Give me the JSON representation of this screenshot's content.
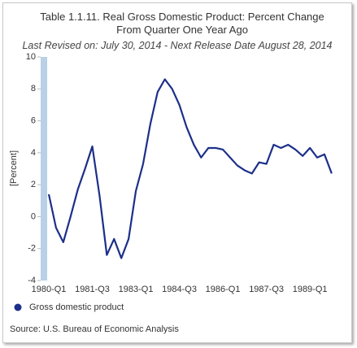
{
  "chart_data": {
    "type": "line",
    "title": "Table 1.1.11. Real Gross Domestic Product: Percent Change From Quarter One Year Ago",
    "subtitle": "Last Revised on: July 30, 2014 - Next Release Date August 28, 2014",
    "y_label": "[Percent]",
    "source": "Source: U.S. Bureau of Economic Analysis",
    "categories": [
      "1980-Q1",
      null,
      null,
      null,
      null,
      null,
      "1981-Q3",
      null,
      null,
      null,
      null,
      null,
      "1983-Q1",
      null,
      null,
      null,
      null,
      null,
      "1984-Q3",
      null,
      null,
      null,
      null,
      null,
      "1986-Q1",
      null,
      null,
      null,
      null,
      null,
      "1987-Q3",
      null,
      null,
      null,
      null,
      null,
      "1989-Q1",
      null,
      null,
      null
    ],
    "series": [
      {
        "name": "Gross domestic product",
        "color": "#1c2f8a",
        "values": [
          1.4,
          -0.7,
          -1.6,
          0.0,
          1.7,
          3.0,
          4.4,
          1.3,
          -2.4,
          -1.4,
          -2.6,
          -1.4,
          1.6,
          3.3,
          5.8,
          7.8,
          8.6,
          8.0,
          7.0,
          5.6,
          4.5,
          3.7,
          4.3,
          4.3,
          4.2,
          3.7,
          3.2,
          2.9,
          2.7,
          3.4,
          3.3,
          4.5,
          4.3,
          4.5,
          4.2,
          3.8,
          4.3,
          3.7,
          3.9,
          2.7
        ]
      }
    ],
    "ylim": [
      -4,
      10
    ],
    "yticks": [
      -4,
      -2,
      0,
      2,
      4,
      6,
      8,
      10
    ],
    "grid": false,
    "legend": "bottom-left"
  }
}
